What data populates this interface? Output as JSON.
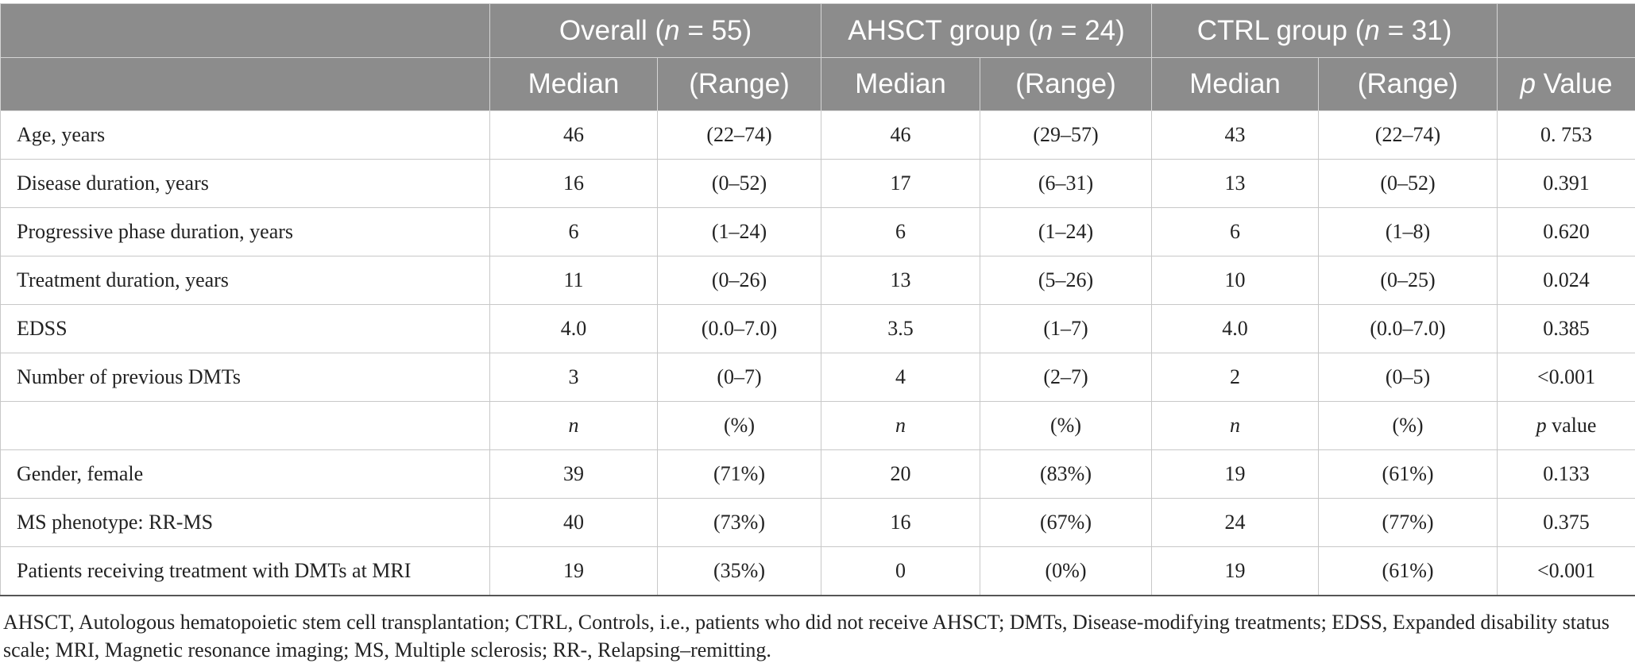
{
  "header": {
    "group_row": [
      {
        "prefix": "Overall (",
        "n_symbol": "n",
        "suffix": " = 55)"
      },
      {
        "prefix": "AHSCT group (",
        "n_symbol": "n",
        "suffix": " = 24)"
      },
      {
        "prefix": "CTRL group (",
        "n_symbol": "n",
        "suffix": " = 31)"
      }
    ],
    "stat_row": {
      "median_label": "Median",
      "range_label": "(Range)",
      "p_symbol": "p",
      "p_suffix": " Value"
    }
  },
  "rows_continuous": [
    {
      "label": "Age, years",
      "values": [
        "46",
        "(22–74)",
        "46",
        "(29–57)",
        "43",
        "(22–74)",
        "0. 753"
      ]
    },
    {
      "label": "Disease duration, years",
      "values": [
        "16",
        "(0–52)",
        "17",
        "(6–31)",
        "13",
        "(0–52)",
        "0.391"
      ]
    },
    {
      "label": "Progressive phase duration, years",
      "values": [
        "6",
        "(1–24)",
        "6",
        "(1–24)",
        "6",
        "(1–8)",
        "0.620"
      ]
    },
    {
      "label": "Treatment duration, years",
      "values": [
        "11",
        "(0–26)",
        "13",
        "(5–26)",
        "10",
        "(0–25)",
        "0.024"
      ]
    },
    {
      "label": "EDSS",
      "values": [
        "4.0",
        "(0.0–7.0)",
        "3.5",
        "(1–7)",
        "4.0",
        "(0.0–7.0)",
        "0.385"
      ]
    },
    {
      "label": "Number of previous DMTs",
      "values": [
        "3",
        "(0–7)",
        "4",
        "(2–7)",
        "2",
        "(0–5)",
        "<0.001"
      ]
    }
  ],
  "subheader": {
    "n_label": "n",
    "pct_label": "(%)",
    "p_symbol": "p",
    "p_suffix": " value"
  },
  "rows_categorical": [
    {
      "label": "Gender, female",
      "values": [
        "39",
        "(71%)",
        "20",
        "(83%)",
        "19",
        "(61%)",
        "0.133"
      ]
    },
    {
      "label": "MS phenotype: RR-MS",
      "values": [
        "40",
        "(73%)",
        "16",
        "(67%)",
        "24",
        "(77%)",
        "0.375"
      ]
    },
    {
      "label": "Patients receiving treatment with DMTs at MRI",
      "values": [
        "19",
        "(35%)",
        "0",
        "(0%)",
        "19",
        "(61%)",
        "<0.001"
      ]
    }
  ],
  "footnote": "AHSCT, Autologous hematopoietic stem cell transplantation; CTRL, Controls, i.e., patients who did not receive AHSCT; DMTs, Disease-modifying treatments; EDSS, Expanded disability status scale; MRI, Magnetic resonance imaging; MS, Multiple sclerosis; RR-, Relapsing–remitting."
}
